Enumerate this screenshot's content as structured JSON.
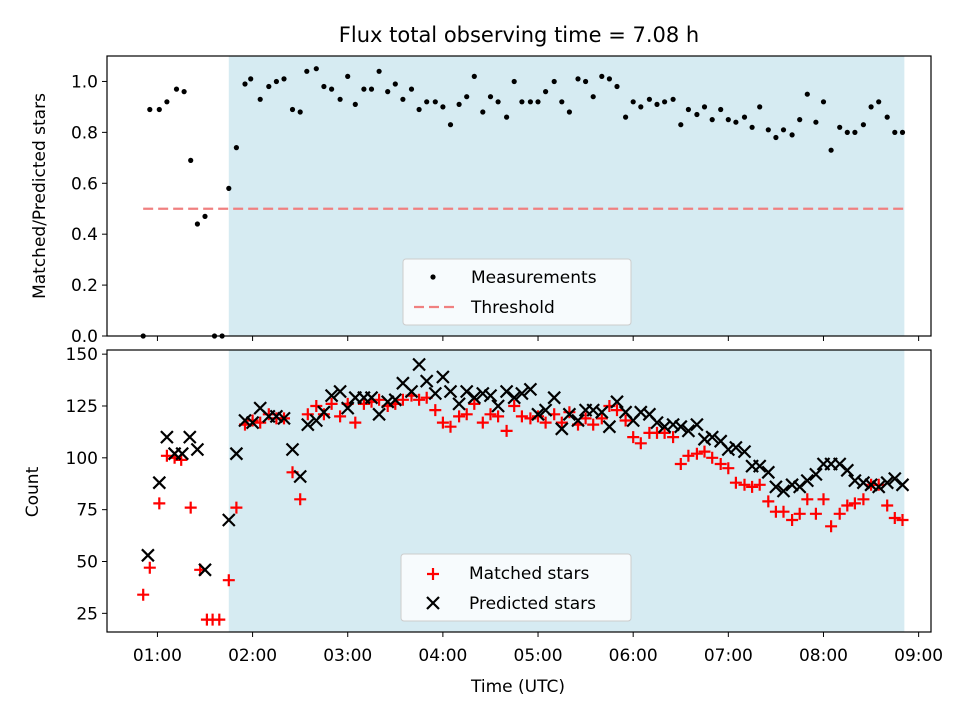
{
  "title": "Flux total observing time = 7.08 h",
  "chart_data": [
    {
      "type": "scatter",
      "ylabel": "Matched/Predicted stars",
      "xlabel": "",
      "ylim": [
        0,
        1.1
      ],
      "xlim_hours": [
        0.47,
        9.13
      ],
      "yticks": [
        0.0,
        0.2,
        0.4,
        0.6,
        0.8,
        1.0
      ],
      "ytick_labels": [
        "0.0",
        "0.2",
        "0.4",
        "0.6",
        "0.8",
        "1.0"
      ],
      "shaded_range_hours": [
        1.75,
        8.85
      ],
      "threshold": {
        "name": "Threshold",
        "value": 0.5,
        "x_range_hours": [
          0.85,
          8.85
        ],
        "color": "#f08080"
      },
      "legend": {
        "placement": "lower-center",
        "entries": [
          "Measurements",
          "Threshold"
        ]
      },
      "series": [
        {
          "name": "Measurements",
          "color": "#000000",
          "x": [
            0.85,
            0.92,
            1.02,
            1.1,
            1.2,
            1.28,
            1.35,
            1.42,
            1.5,
            1.6,
            1.68,
            1.75,
            1.83,
            1.92,
            1.98,
            2.08,
            2.17,
            2.25,
            2.33,
            2.42,
            2.5,
            2.57,
            2.67,
            2.75,
            2.83,
            2.92,
            3.0,
            3.08,
            3.17,
            3.25,
            3.33,
            3.42,
            3.5,
            3.58,
            3.67,
            3.75,
            3.83,
            3.92,
            4.0,
            4.08,
            4.17,
            4.25,
            4.33,
            4.42,
            4.5,
            4.58,
            4.67,
            4.75,
            4.83,
            4.92,
            5.0,
            5.08,
            5.17,
            5.25,
            5.33,
            5.42,
            5.5,
            5.58,
            5.67,
            5.75,
            5.83,
            5.92,
            6.0,
            6.08,
            6.17,
            6.25,
            6.33,
            6.42,
            6.5,
            6.58,
            6.67,
            6.75,
            6.83,
            6.92,
            7.0,
            7.08,
            7.17,
            7.25,
            7.33,
            7.42,
            7.5,
            7.58,
            7.67,
            7.75,
            7.83,
            7.92,
            8.0,
            8.08,
            8.17,
            8.25,
            8.33,
            8.42,
            8.5,
            8.58,
            8.67,
            8.75,
            8.83
          ],
          "y": [
            0.0,
            0.89,
            0.89,
            0.92,
            0.97,
            0.96,
            0.69,
            0.44,
            0.47,
            0.0,
            0.0,
            0.58,
            0.74,
            0.99,
            1.01,
            0.93,
            0.98,
            1.0,
            1.01,
            0.89,
            0.88,
            1.04,
            1.05,
            0.98,
            0.97,
            0.93,
            1.02,
            0.91,
            0.97,
            0.97,
            1.04,
            0.96,
            0.99,
            0.93,
            0.97,
            0.89,
            0.92,
            0.92,
            0.9,
            0.83,
            0.91,
            0.94,
            1.02,
            0.88,
            0.94,
            0.92,
            0.86,
            1.0,
            0.92,
            0.92,
            0.92,
            0.96,
            1.0,
            0.92,
            0.88,
            1.01,
            1.0,
            0.94,
            1.02,
            1.01,
            0.98,
            0.86,
            0.92,
            0.9,
            0.93,
            0.91,
            0.92,
            0.93,
            0.83,
            0.89,
            0.87,
            0.9,
            0.85,
            0.89,
            0.85,
            0.84,
            0.86,
            0.82,
            0.9,
            0.81,
            0.78,
            0.81,
            0.79,
            0.85,
            0.95,
            0.84,
            0.92,
            0.73,
            0.82,
            0.8,
            0.8,
            0.83,
            0.9,
            0.92,
            0.86,
            0.8,
            0.8
          ]
        }
      ]
    },
    {
      "type": "scatter",
      "ylabel": "Count",
      "xlabel": "Time (UTC)",
      "ylim": [
        16,
        152
      ],
      "xlim_hours": [
        0.47,
        9.13
      ],
      "yticks": [
        25,
        50,
        75,
        100,
        125,
        150
      ],
      "ytick_labels": [
        "25",
        "50",
        "75",
        "100",
        "125",
        "150"
      ],
      "xticks_hours": [
        1,
        2,
        3,
        4,
        5,
        6,
        7,
        8,
        9
      ],
      "xtick_labels": [
        "01:00",
        "02:00",
        "03:00",
        "04:00",
        "05:00",
        "06:00",
        "07:00",
        "08:00",
        "09:00"
      ],
      "shaded_range_hours": [
        1.75,
        8.85
      ],
      "legend": {
        "placement": "lower-center",
        "entries": [
          "Matched stars",
          "Predicted stars"
        ]
      },
      "series": [
        {
          "name": "Matched stars",
          "marker": "plus",
          "color": "#ff0000",
          "x": [
            0.85,
            0.92,
            1.02,
            1.1,
            1.18,
            1.25,
            1.35,
            1.45,
            1.52,
            1.58,
            1.65,
            1.75,
            1.83,
            1.92,
            2.0,
            2.08,
            2.17,
            2.25,
            2.33,
            2.42,
            2.5,
            2.58,
            2.67,
            2.75,
            2.83,
            2.92,
            3.0,
            3.08,
            3.17,
            3.25,
            3.33,
            3.42,
            3.5,
            3.58,
            3.67,
            3.75,
            3.83,
            3.92,
            4.0,
            4.08,
            4.17,
            4.25,
            4.33,
            4.42,
            4.5,
            4.58,
            4.67,
            4.75,
            4.83,
            4.92,
            5.0,
            5.08,
            5.17,
            5.25,
            5.33,
            5.42,
            5.5,
            5.58,
            5.67,
            5.75,
            5.83,
            5.92,
            6.0,
            6.08,
            6.17,
            6.25,
            6.33,
            6.42,
            6.5,
            6.58,
            6.67,
            6.75,
            6.83,
            6.92,
            7.0,
            7.08,
            7.17,
            7.25,
            7.33,
            7.42,
            7.5,
            7.58,
            7.67,
            7.75,
            7.83,
            7.92,
            8.0,
            8.08,
            8.17,
            8.25,
            8.33,
            8.42,
            8.5,
            8.58,
            8.67,
            8.75,
            8.83
          ],
          "y": [
            34,
            47,
            78,
            101,
            100,
            99,
            76,
            46,
            22,
            22,
            22,
            41,
            76,
            116,
            118,
            117,
            121,
            119,
            119,
            93,
            80,
            121,
            125,
            121,
            126,
            120,
            126,
            117,
            126,
            127,
            128,
            125,
            126,
            128,
            130,
            128,
            129,
            123,
            117,
            115,
            120,
            121,
            126,
            117,
            121,
            120,
            113,
            125,
            120,
            119,
            120,
            117,
            121,
            117,
            122,
            116,
            119,
            116,
            119,
            125,
            123,
            118,
            110,
            107,
            112,
            112,
            112,
            110,
            97,
            101,
            102,
            103,
            100,
            97,
            95,
            88,
            87,
            86,
            87,
            79,
            74,
            74,
            70,
            73,
            80,
            73,
            80,
            67,
            73,
            77,
            78,
            80,
            87,
            87,
            77,
            71,
            70
          ]
        },
        {
          "name": "Predicted stars",
          "marker": "x",
          "color": "#000000",
          "x": [
            0.9,
            1.02,
            1.1,
            1.18,
            1.26,
            1.34,
            1.42,
            1.5,
            1.75,
            1.83,
            1.92,
            2.0,
            2.08,
            2.17,
            2.25,
            2.33,
            2.42,
            2.5,
            2.58,
            2.67,
            2.75,
            2.83,
            2.92,
            3.0,
            3.08,
            3.17,
            3.25,
            3.33,
            3.42,
            3.5,
            3.58,
            3.67,
            3.75,
            3.83,
            3.92,
            4.0,
            4.08,
            4.17,
            4.25,
            4.33,
            4.42,
            4.5,
            4.58,
            4.67,
            4.75,
            4.83,
            4.92,
            5.0,
            5.08,
            5.17,
            5.25,
            5.33,
            5.42,
            5.5,
            5.58,
            5.67,
            5.75,
            5.83,
            5.92,
            6.0,
            6.08,
            6.17,
            6.25,
            6.33,
            6.42,
            6.5,
            6.58,
            6.67,
            6.75,
            6.83,
            6.92,
            7.0,
            7.08,
            7.17,
            7.25,
            7.33,
            7.42,
            7.5,
            7.58,
            7.67,
            7.75,
            7.83,
            7.92,
            8.0,
            8.08,
            8.17,
            8.25,
            8.33,
            8.42,
            8.5,
            8.58,
            8.67,
            8.75,
            8.83
          ],
          "y": [
            53,
            88,
            110,
            102,
            102,
            110,
            104,
            46,
            70,
            102,
            118,
            117,
            124,
            120,
            120,
            119,
            104,
            91,
            116,
            118,
            122,
            130,
            132,
            124,
            129,
            129,
            129,
            121,
            127,
            128,
            136,
            132,
            145,
            137,
            131,
            139,
            132,
            126,
            132,
            129,
            131,
            130,
            125,
            132,
            129,
            131,
            133,
            121,
            123,
            129,
            114,
            121,
            118,
            123,
            123,
            122,
            115,
            127,
            122,
            118,
            122,
            121,
            117,
            115,
            116,
            115,
            113,
            116,
            109,
            110,
            108,
            104,
            105,
            103,
            96,
            96,
            93,
            86,
            84,
            87,
            86,
            89,
            92,
            97,
            97,
            97,
            94,
            89,
            88,
            87,
            86,
            88,
            90,
            87
          ]
        }
      ]
    }
  ]
}
